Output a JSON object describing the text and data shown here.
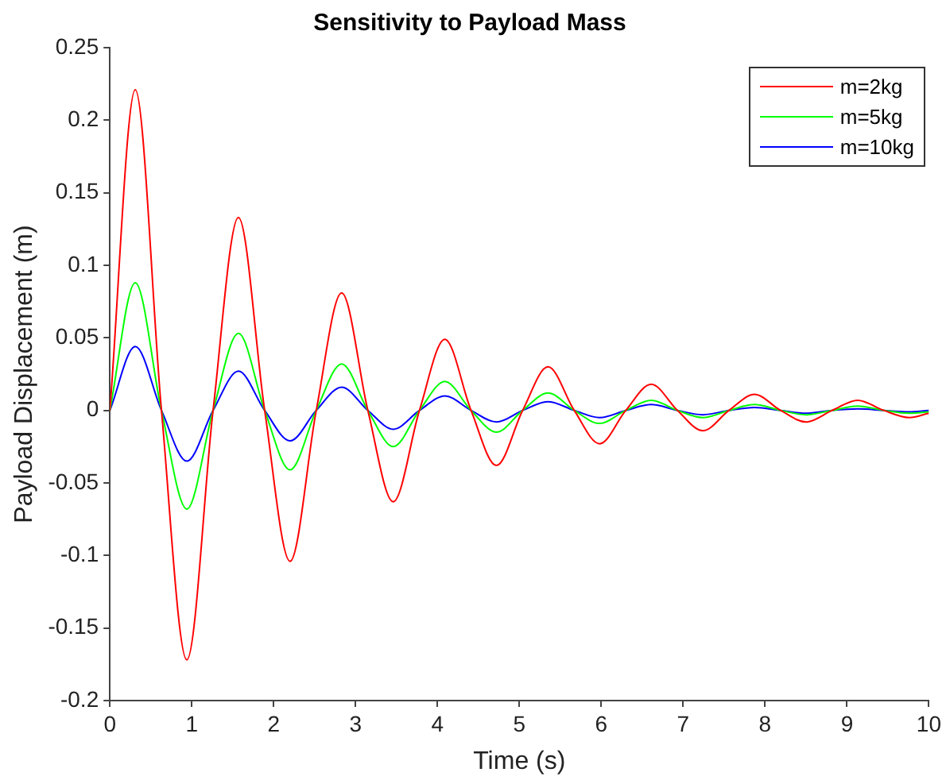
{
  "chart_data": {
    "type": "line",
    "title": "Sensitivity to Payload Mass",
    "xlabel": "Time (s)",
    "ylabel": "Payload Displacement (m)",
    "x": [
      0,
      0.31,
      0.63,
      0.94,
      1.26,
      1.57,
      1.89,
      2.2,
      2.52,
      2.83,
      3.15,
      3.46,
      3.78,
      4.09,
      4.41,
      4.72,
      5.04,
      5.35,
      5.67,
      5.98,
      6.3,
      6.61,
      6.93,
      7.24,
      7.56,
      7.87,
      8.19,
      8.5,
      8.82,
      9.13,
      9.45,
      9.76,
      10
    ],
    "series": [
      {
        "name": "m=2kg",
        "color": "#ff0000",
        "values": [
          0,
          0.221,
          0,
          -0.172,
          0,
          0.133,
          0,
          -0.104,
          0,
          0.081,
          0,
          -0.063,
          0,
          0.049,
          0,
          -0.038,
          0,
          0.03,
          0,
          -0.023,
          0,
          0.018,
          0,
          -0.014,
          0,
          0.011,
          0,
          -0.008,
          0,
          0.007,
          0,
          -0.005,
          -0.002
        ]
      },
      {
        "name": "m=5kg",
        "color": "#00ff00",
        "values": [
          0,
          0.088,
          0,
          -0.068,
          0,
          0.053,
          0,
          -0.041,
          0,
          0.032,
          0,
          -0.025,
          0,
          0.02,
          0,
          -0.015,
          0,
          0.012,
          0,
          -0.009,
          0,
          0.007,
          0,
          -0.005,
          0,
          0.004,
          0,
          -0.003,
          0,
          0.003,
          0,
          -0.002,
          -0.001
        ]
      },
      {
        "name": "m=10kg",
        "color": "#0000ff",
        "values": [
          0,
          0.044,
          0,
          -0.035,
          0,
          0.027,
          0,
          -0.021,
          0,
          0.016,
          0,
          -0.013,
          0,
          0.01,
          0,
          -0.008,
          0,
          0.006,
          0,
          -0.005,
          0,
          0.004,
          0,
          -0.003,
          0,
          0.002,
          0,
          -0.002,
          0,
          0.001,
          0,
          -0.001,
          0
        ]
      }
    ],
    "xlim": [
      0,
      10
    ],
    "xticks": [
      0,
      1,
      2,
      3,
      4,
      5,
      6,
      7,
      8,
      9,
      10
    ],
    "ylim": [
      -0.2,
      0.25
    ],
    "yticks": [
      -0.2,
      -0.15,
      -0.1,
      -0.05,
      0,
      0.05,
      0.1,
      0.15,
      0.2,
      0.25
    ],
    "grid": false,
    "legend": "top right",
    "marker": "none",
    "line_style": "solid"
  }
}
